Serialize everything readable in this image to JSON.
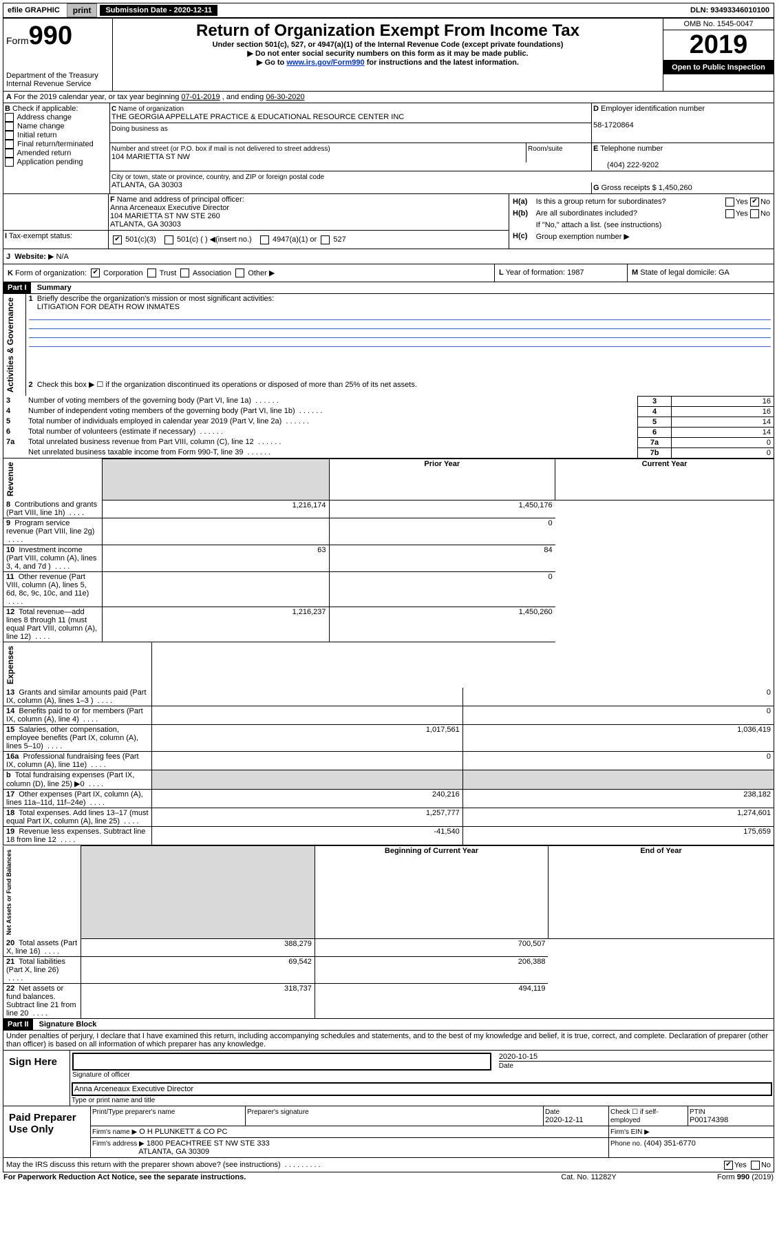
{
  "topbar": {
    "efile": "efile GRAPHIC",
    "print": "print",
    "subdate_lbl": "Submission Date - 2020-12-11",
    "dln": "DLN: 93493346010100"
  },
  "header": {
    "form_prefix": "Form",
    "form_no": "990",
    "title": "Return of Organization Exempt From Income Tax",
    "subtitle1": "Under section 501(c), 527, or 4947(a)(1) of the Internal Revenue Code (except private foundations)",
    "subtitle2": "Do not enter social security numbers on this form as it may be made public.",
    "subtitle3_pre": "Go to ",
    "subtitle3_link": "www.irs.gov/Form990",
    "subtitle3_post": " for instructions and the latest information.",
    "dept": "Department of the Treasury",
    "irs": "Internal Revenue Service",
    "omb": "OMB No. 1545-0047",
    "year": "2019",
    "open": "Open to Public Inspection"
  },
  "a_line": {
    "text_pre": "For the 2019 calendar year, or tax year beginning ",
    "begin": "07-01-2019",
    "mid": " , and ending ",
    "end": "06-30-2020"
  },
  "b": {
    "label": "Check if applicable:",
    "opts": [
      "Address change",
      "Name change",
      "Initial return",
      "Final return/terminated",
      "Amended return",
      "Application pending"
    ]
  },
  "c": {
    "name_lbl": "Name of organization",
    "name": "THE GEORGIA APPELLATE PRACTICE & EDUCATIONAL RESOURCE CENTER INC",
    "dba_lbl": "Doing business as",
    "addr_lbl": "Number and street (or P.O. box if mail is not delivered to street address)",
    "room_lbl": "Room/suite",
    "addr": "104 MARIETTA ST NW",
    "city_lbl": "City or town, state or province, country, and ZIP or foreign postal code",
    "city": "ATLANTA, GA  30303"
  },
  "d": {
    "lbl": "Employer identification number",
    "val": "58-1720864"
  },
  "e": {
    "lbl": "Telephone number",
    "val": "(404) 222-9202"
  },
  "g": {
    "lbl": "Gross receipts $",
    "val": "1,450,260"
  },
  "f": {
    "lbl": "Name and address of principal officer:",
    "v1": "Anna Arceneaux Executive Director",
    "v2": "104 MARIETTA ST NW STE 260",
    "v3": "ATLANTA, GA  30303"
  },
  "h": {
    "a": "Is this a group return for subordinates?",
    "b": "Are all subordinates included?",
    "b2": "If \"No,\" attach a list. (see instructions)",
    "c": "Group exemption number"
  },
  "i": {
    "lbl": "Tax-exempt status:",
    "o1": "501(c)(3)",
    "o2": "501(c) (   ) ◀(insert no.)",
    "o3": "4947(a)(1) or",
    "o4": "527"
  },
  "j": {
    "lbl": "Website:",
    "val": "N/A"
  },
  "k": {
    "lbl": "Form of organization:",
    "o1": "Corporation",
    "o2": "Trust",
    "o3": "Association",
    "o4": "Other"
  },
  "l": {
    "lbl": "Year of formation:",
    "val": "1987"
  },
  "m": {
    "lbl": "State of legal domicile:",
    "val": "GA"
  },
  "part1": {
    "hdr": "Part I",
    "title": "Summary",
    "l1": "Briefly describe the organization's mission or most significant activities:",
    "l1v": "LITIGATION FOR DEATH ROW INMATES",
    "l2": "Check this box ▶ ☐  if the organization discontinued its operations or disposed of more than 25% of its net assets.",
    "sections": {
      "s1": "Activities & Governance",
      "s2": "Revenue",
      "s3": "Expenses",
      "s4": "Net Assets or Fund Balances"
    },
    "prior": "Prior Year",
    "current": "Current Year",
    "begin": "Beginning of Current Year",
    "end": "End of Year",
    "rows_a": [
      {
        "n": "3",
        "t": "Number of voting members of the governing body (Part VI, line 1a)",
        "box": "3",
        "v": "16"
      },
      {
        "n": "4",
        "t": "Number of independent voting members of the governing body (Part VI, line 1b)",
        "box": "4",
        "v": "16"
      },
      {
        "n": "5",
        "t": "Total number of individuals employed in calendar year 2019 (Part V, line 2a)",
        "box": "5",
        "v": "14"
      },
      {
        "n": "6",
        "t": "Total number of volunteers (estimate if necessary)",
        "box": "6",
        "v": "14"
      },
      {
        "n": "7a",
        "t": "Total unrelated business revenue from Part VIII, column (C), line 12",
        "box": "7a",
        "v": "0"
      },
      {
        "n": "",
        "t": "Net unrelated business taxable income from Form 990-T, line 39",
        "box": "7b",
        "v": "0"
      }
    ],
    "rows_b": [
      {
        "n": "8",
        "t": "Contributions and grants (Part VIII, line 1h)",
        "p": "1,216,174",
        "c": "1,450,176"
      },
      {
        "n": "9",
        "t": "Program service revenue (Part VIII, line 2g)",
        "p": "",
        "c": "0"
      },
      {
        "n": "10",
        "t": "Investment income (Part VIII, column (A), lines 3, 4, and 7d )",
        "p": "63",
        "c": "84"
      },
      {
        "n": "11",
        "t": "Other revenue (Part VIII, column (A), lines 5, 6d, 8c, 9c, 10c, and 11e)",
        "p": "",
        "c": "0"
      },
      {
        "n": "12",
        "t": "Total revenue—add lines 8 through 11 (must equal Part VIII, column (A), line 12)",
        "p": "1,216,237",
        "c": "1,450,260"
      }
    ],
    "rows_c": [
      {
        "n": "13",
        "t": "Grants and similar amounts paid (Part IX, column (A), lines 1–3 )",
        "p": "",
        "c": "0"
      },
      {
        "n": "14",
        "t": "Benefits paid to or for members (Part IX, column (A), line 4)",
        "p": "",
        "c": "0"
      },
      {
        "n": "15",
        "t": "Salaries, other compensation, employee benefits (Part IX, column (A), lines 5–10)",
        "p": "1,017,561",
        "c": "1,036,419"
      },
      {
        "n": "16a",
        "t": "Professional fundraising fees (Part IX, column (A), line 11e)",
        "p": "",
        "c": "0"
      },
      {
        "n": "b",
        "t": "Total fundraising expenses (Part IX, column (D), line 25) ▶0",
        "p": "GREY",
        "c": "GREY"
      },
      {
        "n": "17",
        "t": "Other expenses (Part IX, column (A), lines 11a–11d, 11f–24e)",
        "p": "240,216",
        "c": "238,182"
      },
      {
        "n": "18",
        "t": "Total expenses. Add lines 13–17 (must equal Part IX, column (A), line 25)",
        "p": "1,257,777",
        "c": "1,274,601"
      },
      {
        "n": "19",
        "t": "Revenue less expenses. Subtract line 18 from line 12",
        "p": "-41,540",
        "c": "175,659"
      }
    ],
    "rows_d": [
      {
        "n": "20",
        "t": "Total assets (Part X, line 16)",
        "p": "388,279",
        "c": "700,507"
      },
      {
        "n": "21",
        "t": "Total liabilities (Part X, line 26)",
        "p": "69,542",
        "c": "206,388"
      },
      {
        "n": "22",
        "t": "Net assets or fund balances. Subtract line 21 from line 20",
        "p": "318,737",
        "c": "494,119"
      }
    ]
  },
  "part2": {
    "hdr": "Part II",
    "title": "Signature Block",
    "perjury": "Under penalties of perjury, I declare that I have examined this return, including accompanying schedules and statements, and to the best of my knowledge and belief, it is true, correct, and complete. Declaration of preparer (other than officer) is based on all information of which preparer has any knowledge.",
    "sign_here": "Sign Here",
    "sig_off": "Signature of officer",
    "date_lbl": "Date",
    "sig_date": "2020-10-15",
    "officer": "Anna Arceneaux  Executive Director",
    "type_name": "Type or print name and title",
    "paid": "Paid Preparer Use Only",
    "prep_name_lbl": "Print/Type preparer's name",
    "prep_sig_lbl": "Preparer's signature",
    "prep_date_lbl": "Date",
    "prep_date": "2020-12-11",
    "check_lbl": "Check ☐ if self-employed",
    "ptin_lbl": "PTIN",
    "ptin": "P00174398",
    "firm_name_lbl": "Firm's name   ▶",
    "firm_name": "O H PLUNKETT & CO PC",
    "firm_ein_lbl": "Firm's EIN ▶",
    "firm_addr_lbl": "Firm's address ▶",
    "firm_addr": "1800 PEACHTREE ST NW STE 333",
    "firm_city": "ATLANTA, GA  30309",
    "phone_lbl": "Phone no.",
    "phone": "(404) 351-6770",
    "may_irs": "May the IRS discuss this return with the preparer shown above? (see instructions)",
    "paperwork": "For Paperwork Reduction Act Notice, see the separate instructions.",
    "cat": "Cat. No. 11282Y",
    "formfoot": "Form 990 (2019)"
  },
  "yn": {
    "yes": "Yes",
    "no": "No"
  }
}
